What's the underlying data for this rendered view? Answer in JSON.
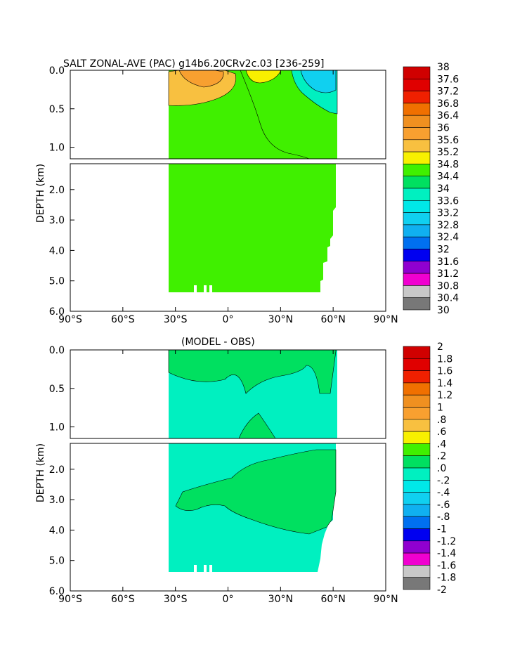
{
  "chart_data": [
    {
      "type": "heatmap",
      "title": "SALT ZONAL-AVE (PAC) g14b6.20CRv2c.03 [236-259]",
      "ylabel": "DEPTH (km)",
      "xlim": [
        -90,
        90
      ],
      "ylim": [
        6.0,
        0.0
      ],
      "x_ticks": [
        "90°S",
        "60°S",
        "30°S",
        "0°",
        "30°N",
        "60°N",
        "90°N"
      ],
      "y_ticks_upper": [
        "0.0",
        "0.5",
        "1.0"
      ],
      "y_ticks_lower": [
        "2.0",
        "3.0",
        "4.0",
        "5.0",
        "6.0"
      ],
      "colorbar_labels": [
        "38",
        "37.6",
        "37.2",
        "36.8",
        "36.4",
        "36",
        "35.6",
        "35.2",
        "34.8",
        "34.4",
        "34",
        "33.6",
        "33.2",
        "32.8",
        "32.4",
        "32",
        "31.6",
        "31.2",
        "30.8",
        "30.4",
        "30"
      ],
      "data_extent_lat": [
        -33,
        62
      ],
      "background_level": "34.4-34.8"
    },
    {
      "type": "heatmap",
      "title": "(MODEL - OBS)",
      "ylabel": "DEPTH (km)",
      "xlim": [
        -90,
        90
      ],
      "ylim": [
        6.0,
        0.0
      ],
      "x_ticks": [
        "90°S",
        "60°S",
        "30°S",
        "0°",
        "30°N",
        "60°N",
        "90°N"
      ],
      "y_ticks_upper": [
        "0.0",
        "0.5",
        "1.0"
      ],
      "y_ticks_lower": [
        "2.0",
        "3.0",
        "4.0",
        "5.0",
        "6.0"
      ],
      "colorbar_labels": [
        "2",
        "1.8",
        "1.6",
        "1.4",
        "1.2",
        "1",
        ".8",
        ".6",
        ".4",
        ".2",
        ".0",
        "-.2",
        "-.4",
        "-.6",
        "-.8",
        "-1",
        "-1.2",
        "-1.4",
        "-1.6",
        "-1.8",
        "-2"
      ],
      "data_extent_lat": [
        -33,
        62
      ],
      "background_level": "0.0-0.2"
    }
  ],
  "colors": [
    "#d00000",
    "#e00000",
    "#f02000",
    "#f07000",
    "#f09020",
    "#f8a030",
    "#f8c040",
    "#f8f000",
    "#40f000",
    "#00e060",
    "#00f0c0",
    "#00e8e8",
    "#10d0f0",
    "#10b0f0",
    "#0070f0",
    "#0000f0",
    "#9000d0",
    "#f000d0",
    "#c8c8c8",
    "#787878"
  ]
}
